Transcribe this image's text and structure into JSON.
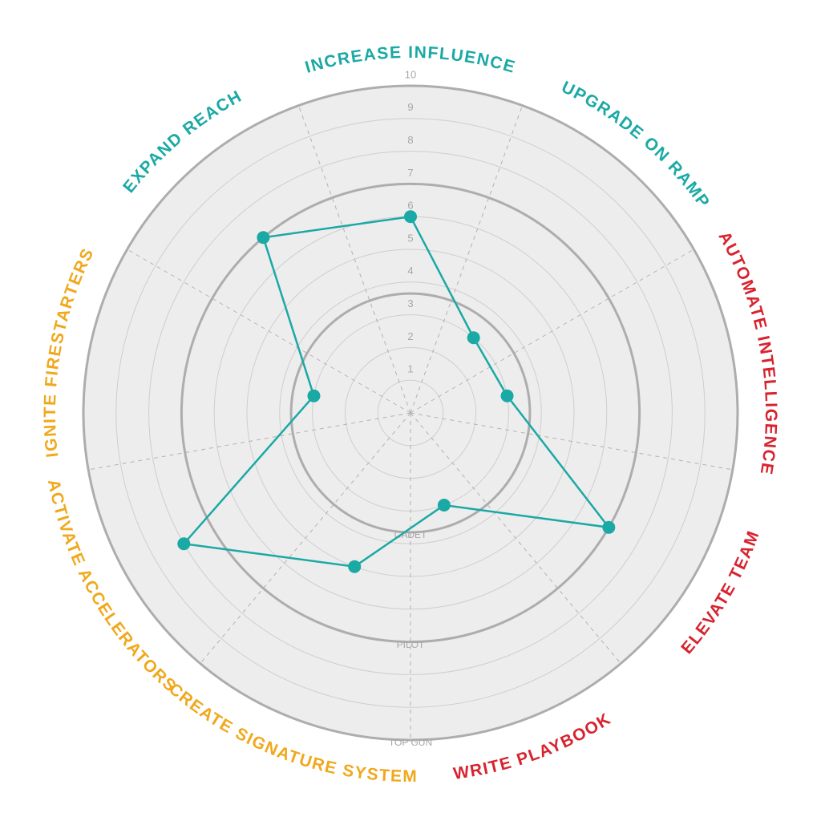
{
  "chart_data": {
    "type": "radar",
    "categories": [
      "INCREASE INFLUENCE",
      "UPGRADE ON RAMP",
      "AUTOMATE INTELLIGENCE",
      "ELEVATE TEAM",
      "WRITE PLAYBOOK",
      "CREATE SIGNATURE SYSTEM",
      "ACTIVATE ACCELERATORS",
      "IGNITE FIRESTARTERS",
      "EXPAND REACH"
    ],
    "category_colors": [
      "#1aa9a5",
      "#1aa9a5",
      "#d8232f",
      "#d8232f",
      "#d8232f",
      "#f0a81c",
      "#f0a81c",
      "#f0a81c",
      "#1aa9a5"
    ],
    "values": [
      6,
      3,
      3,
      7,
      3,
      5,
      8,
      3,
      7
    ],
    "color": "#1aa9a5",
    "rlim": [
      0,
      10
    ],
    "rticks": [
      1,
      2,
      3,
      4,
      5,
      6,
      7,
      8,
      9,
      10
    ],
    "levels": [
      {
        "value": 3.65,
        "label": "CADET"
      },
      {
        "value": 7,
        "label": "PILOT"
      },
      {
        "value": 10,
        "label": "TOP GUN"
      }
    ]
  }
}
